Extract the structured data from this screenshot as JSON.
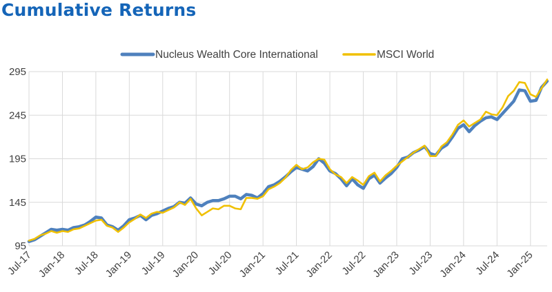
{
  "header": {
    "title": "Cumulative Returns"
  },
  "chart_data": {
    "type": "line",
    "title": "Cumulative Returns",
    "xlabel": "",
    "ylabel": "",
    "ylim": [
      95,
      295
    ],
    "yticks": [
      95,
      145,
      195,
      245,
      295
    ],
    "grid": true,
    "legend_position": "top",
    "x_tick_labels": [
      "Jul-17",
      "Jan-18",
      "Jul-18",
      "Jan-19",
      "Jul-19",
      "Jan-20",
      "Jul-20",
      "Jan-21",
      "Jul-21",
      "Jan-22",
      "Jul-22",
      "Jan-23",
      "Jul-23",
      "Jan-24",
      "Jul-24",
      "Jan-25"
    ],
    "x_start": "Jul-17",
    "series": [
      {
        "name": "Nucleus Wealth Core International",
        "color": "#4f81bd",
        "values": [
          100,
          102,
          106,
          110,
          114,
          113,
          114,
          113,
          116,
          117,
          119,
          123,
          128,
          127,
          119,
          117,
          113,
          118,
          125,
          127,
          130,
          125,
          130,
          132,
          135,
          138,
          140,
          145,
          144,
          150,
          143,
          141,
          145,
          147,
          147,
          149,
          152,
          152,
          149,
          154,
          153,
          150,
          155,
          163,
          165,
          169,
          174,
          180,
          185,
          183,
          181,
          186,
          195,
          190,
          181,
          178,
          172,
          164,
          172,
          165,
          161,
          172,
          176,
          167,
          173,
          178,
          185,
          195,
          197,
          202,
          205,
          209,
          201,
          199,
          207,
          211,
          220,
          230,
          234,
          226,
          233,
          238,
          242,
          243,
          240,
          247,
          254,
          261,
          274,
          273,
          261,
          262,
          277,
          284
        ]
      },
      {
        "name": "MSCI World",
        "color": "#f0c000",
        "values": [
          101,
          103,
          107,
          109,
          112,
          110,
          112,
          111,
          114,
          115,
          118,
          121,
          124,
          125,
          118,
          116,
          111,
          116,
          122,
          126,
          131,
          127,
          132,
          134,
          133,
          136,
          139,
          145,
          142,
          149,
          138,
          130,
          134,
          138,
          137,
          141,
          141,
          138,
          137,
          150,
          150,
          149,
          152,
          160,
          163,
          167,
          173,
          182,
          188,
          183,
          185,
          191,
          195,
          194,
          183,
          177,
          174,
          167,
          174,
          170,
          165,
          175,
          179,
          169,
          176,
          181,
          187,
          192,
          197,
          202,
          206,
          210,
          198,
          198,
          209,
          214,
          223,
          234,
          239,
          232,
          236,
          240,
          249,
          246,
          245,
          254,
          267,
          273,
          283,
          282,
          269,
          266,
          276,
          286
        ]
      }
    ]
  }
}
